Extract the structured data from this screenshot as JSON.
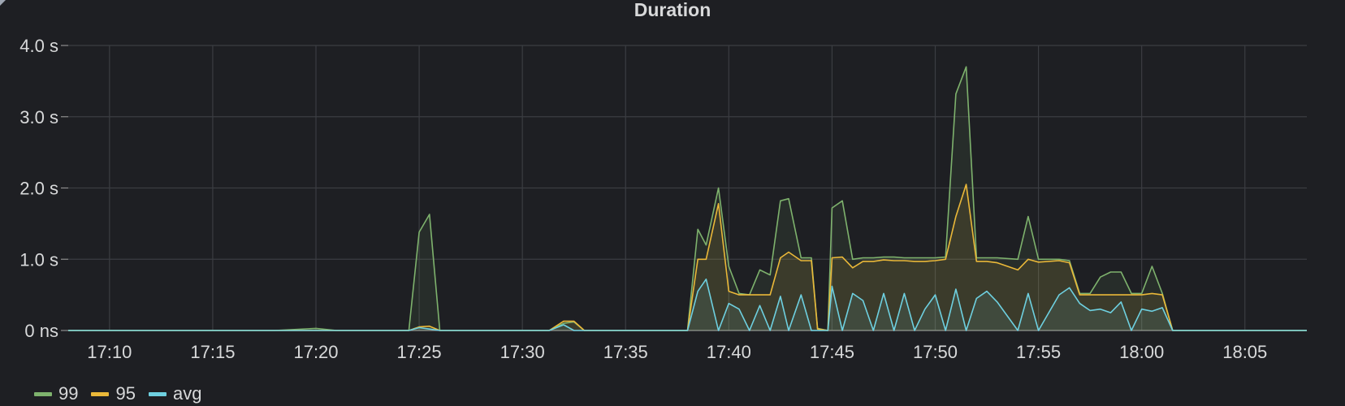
{
  "panel": {
    "title": "Duration",
    "corner_icon": "panel-menu-icon"
  },
  "chart_data": {
    "type": "area",
    "title": "Duration",
    "xlabel": "",
    "ylabel": "",
    "x_ticks": [
      "17:10",
      "17:15",
      "17:20",
      "17:25",
      "17:30",
      "17:35",
      "17:40",
      "17:45",
      "17:50",
      "17:55",
      "18:00",
      "18:05"
    ],
    "y_ticks": [
      "0 ns",
      "1.0 s",
      "2.0 s",
      "3.0 s",
      "4.0 s"
    ],
    "xlim": [
      "17:08",
      "18:08"
    ],
    "ylim": [
      0,
      4.0
    ],
    "grid": true,
    "legend_position": "bottom-left",
    "series": [
      {
        "name": "99",
        "color": "#7eb26d",
        "points": [
          [
            "17:08",
            0
          ],
          [
            "17:18",
            0
          ],
          [
            "17:20",
            0.03
          ],
          [
            "17:21",
            0
          ],
          [
            "17:24.5",
            0
          ],
          [
            "17:25",
            1.38
          ],
          [
            "17:25.5",
            1.63
          ],
          [
            "17:26",
            0
          ],
          [
            "17:31.3",
            0
          ],
          [
            "17:32",
            0.1
          ],
          [
            "17:32.5",
            0.12
          ],
          [
            "17:33",
            0
          ],
          [
            "17:38",
            0
          ],
          [
            "17:38.5",
            1.42
          ],
          [
            "17:38.9",
            1.2
          ],
          [
            "17:39.5",
            2.0
          ],
          [
            "17:40",
            0.9
          ],
          [
            "17:40.5",
            0.52
          ],
          [
            "17:41",
            0.5
          ],
          [
            "17:41.5",
            0.85
          ],
          [
            "17:42",
            0.78
          ],
          [
            "17:42.5",
            1.82
          ],
          [
            "17:42.9",
            1.85
          ],
          [
            "17:43.5",
            1.02
          ],
          [
            "17:44",
            1.02
          ],
          [
            "17:44.3",
            0.03
          ],
          [
            "17:44.8",
            0
          ],
          [
            "17:45",
            1.72
          ],
          [
            "17:45.5",
            1.82
          ],
          [
            "17:46",
            1.0
          ],
          [
            "17:46.5",
            1.02
          ],
          [
            "17:47",
            1.02
          ],
          [
            "17:47.5",
            1.03
          ],
          [
            "17:48",
            1.03
          ],
          [
            "17:48.5",
            1.02
          ],
          [
            "17:49",
            1.02
          ],
          [
            "17:49.5",
            1.02
          ],
          [
            "17:50",
            1.02
          ],
          [
            "17:50.5",
            1.03
          ],
          [
            "17:51",
            3.32
          ],
          [
            "17:51.5",
            3.7
          ],
          [
            "17:52",
            1.02
          ],
          [
            "17:52.5",
            1.02
          ],
          [
            "17:53",
            1.02
          ],
          [
            "17:54",
            1.0
          ],
          [
            "17:54.5",
            1.6
          ],
          [
            "17:55",
            1.0
          ],
          [
            "17:56",
            1.0
          ],
          [
            "17:56.5",
            0.98
          ],
          [
            "17:57",
            0.52
          ],
          [
            "17:57.5",
            0.52
          ],
          [
            "17:58",
            0.75
          ],
          [
            "17:58.5",
            0.82
          ],
          [
            "17:59",
            0.82
          ],
          [
            "17:59.5",
            0.52
          ],
          [
            "18:00",
            0.52
          ],
          [
            "18:00.5",
            0.9
          ],
          [
            "18:01",
            0.52
          ],
          [
            "18:01.5",
            0
          ],
          [
            "18:08",
            0
          ]
        ]
      },
      {
        "name": "95",
        "color": "#eab839",
        "points": [
          [
            "17:08",
            0
          ],
          [
            "17:24.5",
            0
          ],
          [
            "17:25",
            0.05
          ],
          [
            "17:25.5",
            0.06
          ],
          [
            "17:26",
            0
          ],
          [
            "17:31.3",
            0
          ],
          [
            "17:32",
            0.13
          ],
          [
            "17:32.5",
            0.13
          ],
          [
            "17:33",
            0
          ],
          [
            "17:38",
            0
          ],
          [
            "17:38.5",
            1.0
          ],
          [
            "17:38.9",
            1.0
          ],
          [
            "17:39.5",
            1.78
          ],
          [
            "17:40",
            0.55
          ],
          [
            "17:40.5",
            0.5
          ],
          [
            "17:41",
            0.5
          ],
          [
            "17:41.5",
            0.5
          ],
          [
            "17:42",
            0.5
          ],
          [
            "17:42.5",
            1.02
          ],
          [
            "17:42.9",
            1.1
          ],
          [
            "17:43.5",
            0.98
          ],
          [
            "17:44",
            0.98
          ],
          [
            "17:44.3",
            0.02
          ],
          [
            "17:44.8",
            0
          ],
          [
            "17:45",
            1.02
          ],
          [
            "17:45.5",
            1.03
          ],
          [
            "17:46",
            0.88
          ],
          [
            "17:46.5",
            0.97
          ],
          [
            "17:47",
            0.97
          ],
          [
            "17:47.5",
            0.99
          ],
          [
            "17:48",
            0.98
          ],
          [
            "17:48.5",
            0.98
          ],
          [
            "17:49",
            0.97
          ],
          [
            "17:49.5",
            0.97
          ],
          [
            "17:50",
            0.98
          ],
          [
            "17:50.5",
            1.0
          ],
          [
            "17:51",
            1.6
          ],
          [
            "17:51.5",
            2.05
          ],
          [
            "17:52",
            0.97
          ],
          [
            "17:52.5",
            0.97
          ],
          [
            "17:53",
            0.95
          ],
          [
            "17:54",
            0.85
          ],
          [
            "17:54.5",
            1.0
          ],
          [
            "17:55",
            0.96
          ],
          [
            "17:56",
            0.98
          ],
          [
            "17:56.5",
            0.95
          ],
          [
            "17:57",
            0.5
          ],
          [
            "17:57.5",
            0.5
          ],
          [
            "17:58",
            0.5
          ],
          [
            "17:58.5",
            0.5
          ],
          [
            "17:59",
            0.5
          ],
          [
            "17:59.5",
            0.5
          ],
          [
            "18:00",
            0.5
          ],
          [
            "18:00.5",
            0.52
          ],
          [
            "18:01",
            0.5
          ],
          [
            "18:01.5",
            0
          ],
          [
            "18:08",
            0
          ]
        ]
      },
      {
        "name": "avg",
        "color": "#6ed0e0",
        "points": [
          [
            "17:08",
            0
          ],
          [
            "17:24.5",
            0
          ],
          [
            "17:25",
            0.04
          ],
          [
            "17:25.5",
            0.02
          ],
          [
            "17:26",
            0
          ],
          [
            "17:31.3",
            0
          ],
          [
            "17:32",
            0.08
          ],
          [
            "17:32.5",
            0
          ],
          [
            "17:38",
            0
          ],
          [
            "17:38.5",
            0.55
          ],
          [
            "17:38.9",
            0.72
          ],
          [
            "17:39.5",
            0
          ],
          [
            "17:40",
            0.38
          ],
          [
            "17:40.5",
            0.3
          ],
          [
            "17:41",
            0
          ],
          [
            "17:41.5",
            0.35
          ],
          [
            "17:42",
            0
          ],
          [
            "17:42.5",
            0.48
          ],
          [
            "17:42.9",
            0
          ],
          [
            "17:43.5",
            0.5
          ],
          [
            "17:44",
            0
          ],
          [
            "17:44.3",
            0
          ],
          [
            "17:44.8",
            0
          ],
          [
            "17:45",
            0.62
          ],
          [
            "17:45.5",
            0
          ],
          [
            "17:46",
            0.52
          ],
          [
            "17:46.5",
            0.42
          ],
          [
            "17:47",
            0
          ],
          [
            "17:47.5",
            0.52
          ],
          [
            "17:48",
            0
          ],
          [
            "17:48.5",
            0.52
          ],
          [
            "17:49",
            0
          ],
          [
            "17:49.5",
            0.3
          ],
          [
            "17:50",
            0.5
          ],
          [
            "17:50.5",
            0
          ],
          [
            "17:51",
            0.58
          ],
          [
            "17:51.5",
            0
          ],
          [
            "17:52",
            0.45
          ],
          [
            "17:52.5",
            0.55
          ],
          [
            "17:53",
            0.4
          ],
          [
            "17:54",
            0
          ],
          [
            "17:54.5",
            0.52
          ],
          [
            "17:55",
            0
          ],
          [
            "17:56",
            0.5
          ],
          [
            "17:56.5",
            0.6
          ],
          [
            "17:57",
            0.38
          ],
          [
            "17:57.5",
            0.28
          ],
          [
            "17:58",
            0.3
          ],
          [
            "17:58.5",
            0.25
          ],
          [
            "17:59",
            0.4
          ],
          [
            "17:59.5",
            0
          ],
          [
            "18:00",
            0.3
          ],
          [
            "18:00.5",
            0.27
          ],
          [
            "18:01",
            0.32
          ],
          [
            "18:01.5",
            0
          ],
          [
            "18:08",
            0
          ]
        ]
      }
    ]
  },
  "legend": [
    {
      "label": "99",
      "color": "#7eb26d"
    },
    {
      "label": "95",
      "color": "#eab839"
    },
    {
      "label": "avg",
      "color": "#6ed0e0"
    }
  ]
}
